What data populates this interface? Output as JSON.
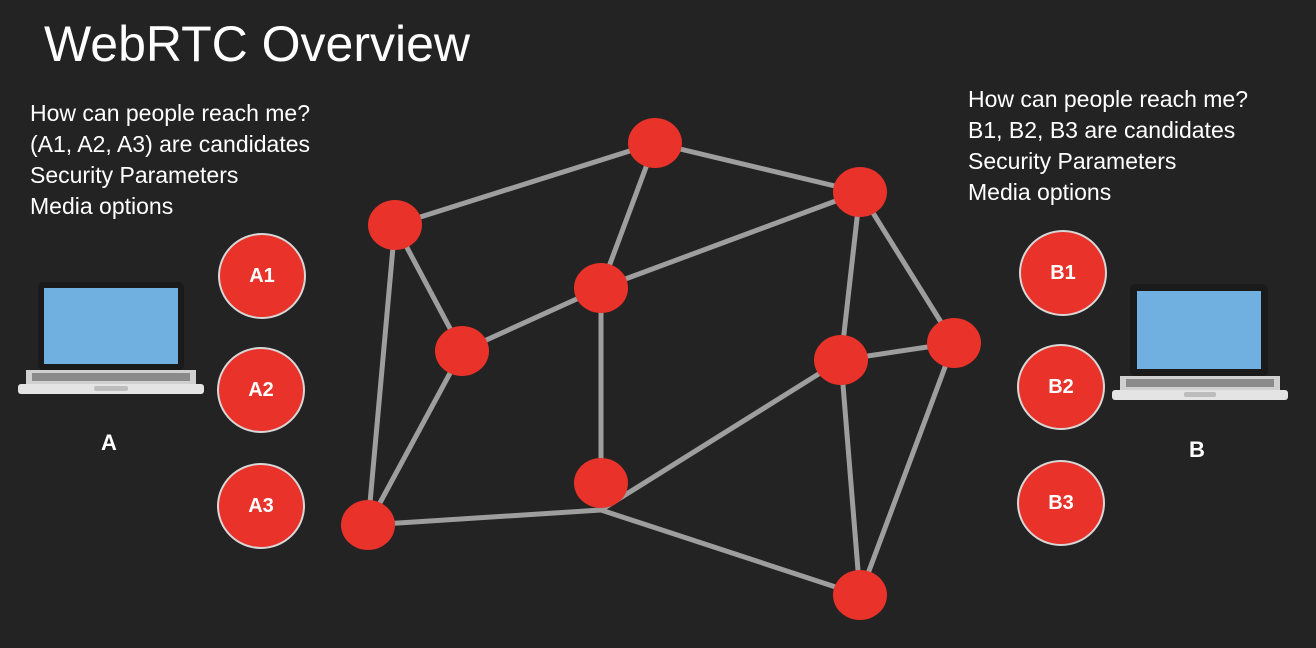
{
  "title": "WebRTC Overview",
  "peer_a": {
    "label": "A",
    "notes": [
      "How can people reach me?",
      "(A1, A2, A3) are candidates",
      "Security Parameters",
      "Media options"
    ],
    "candidates": [
      "A1",
      "A2",
      "A3"
    ]
  },
  "peer_b": {
    "label": "B",
    "notes": [
      "How can people reach me?",
      "B1, B2, B3 are candidates",
      "Security Parameters",
      "Media options"
    ],
    "candidates": [
      "B1",
      "B2",
      "B3"
    ]
  },
  "colors": {
    "background": "#232323",
    "node": "#e8322a",
    "link": "#9e9e9e",
    "screen": "#6fb0e0"
  }
}
